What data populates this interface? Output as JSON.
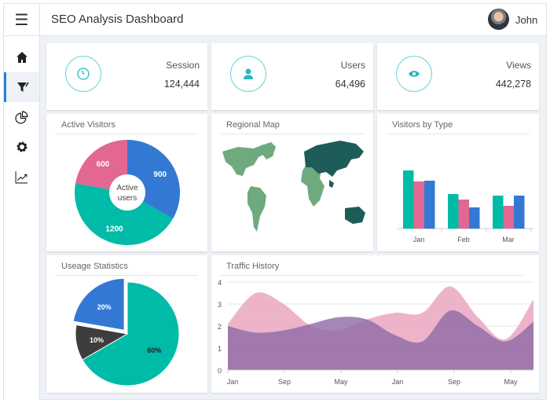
{
  "header": {
    "title": "SEO Analysis Dashboard",
    "user": "John",
    "menu_icon": "hamburger-icon"
  },
  "sidebar": {
    "items": [
      {
        "icon": "home-icon"
      },
      {
        "icon": "filter-icon",
        "active": true
      },
      {
        "icon": "pie-chart-icon"
      },
      {
        "icon": "gear-icon"
      },
      {
        "icon": "trend-chart-icon"
      }
    ]
  },
  "kpis": [
    {
      "label": "Session",
      "value": "124,444",
      "icon": "speedometer-icon"
    },
    {
      "label": "Users",
      "value": "64,496",
      "icon": "user-icon"
    },
    {
      "label": "Views",
      "value": "442,278",
      "icon": "eye-icon"
    }
  ],
  "colors": {
    "teal": "#00bba7",
    "pink": "#e26792",
    "blue": "#3379d4",
    "dark": "#3d3d3d",
    "accent": "#2f7fd0"
  },
  "regional_map": {
    "title": "Regional Map"
  },
  "chart_data": [
    {
      "type": "pie",
      "title": "Active Visitors",
      "donut": true,
      "center_label": [
        "Active",
        "users"
      ],
      "slices": [
        {
          "value": 900,
          "label": "900",
          "color": "#3379d4"
        },
        {
          "value": 1200,
          "label": "1200",
          "color": "#00bba7"
        },
        {
          "value": 600,
          "label": "600",
          "color": "#e26792"
        }
      ]
    },
    {
      "type": "bar",
      "title": "Visitors by Type",
      "categories": [
        "Jan",
        "Feb",
        "Mar"
      ],
      "series": [
        {
          "values": [
            74,
            44,
            42
          ],
          "color": "#00bba7"
        },
        {
          "values": [
            60,
            37,
            29
          ],
          "color": "#e26792"
        },
        {
          "values": [
            61,
            27,
            42
          ],
          "color": "#3379d4"
        }
      ]
    },
    {
      "type": "pie",
      "title": "Useage Statistics",
      "slices": [
        {
          "value": 60,
          "label": "60%",
          "color": "#00bba7"
        },
        {
          "value": 10,
          "label": "10%",
          "color": "#3d3d3d"
        },
        {
          "value": 20,
          "label": "20%",
          "color": "#3379d4",
          "exploded": true
        }
      ]
    },
    {
      "type": "area",
      "title": "Traffic History",
      "ylim": [
        0,
        4
      ],
      "yticks": [
        "0",
        "1",
        "2",
        "3",
        "4"
      ],
      "xticks": [
        "Jan",
        "Sep",
        "May",
        "Jan",
        "Sep",
        "May"
      ],
      "grid": true,
      "series": [
        {
          "color": "#e8a0bb",
          "values": [
            2.1,
            3.5,
            3.0,
            2.0,
            1.8,
            2.3,
            2.6,
            2.6,
            3.8,
            2.4,
            1.4,
            3.2
          ]
        },
        {
          "color": "#8d6aa5",
          "values": [
            2.0,
            1.7,
            1.8,
            2.1,
            2.4,
            2.3,
            1.6,
            1.3,
            2.7,
            2.0,
            1.3,
            2.2
          ]
        }
      ]
    }
  ]
}
